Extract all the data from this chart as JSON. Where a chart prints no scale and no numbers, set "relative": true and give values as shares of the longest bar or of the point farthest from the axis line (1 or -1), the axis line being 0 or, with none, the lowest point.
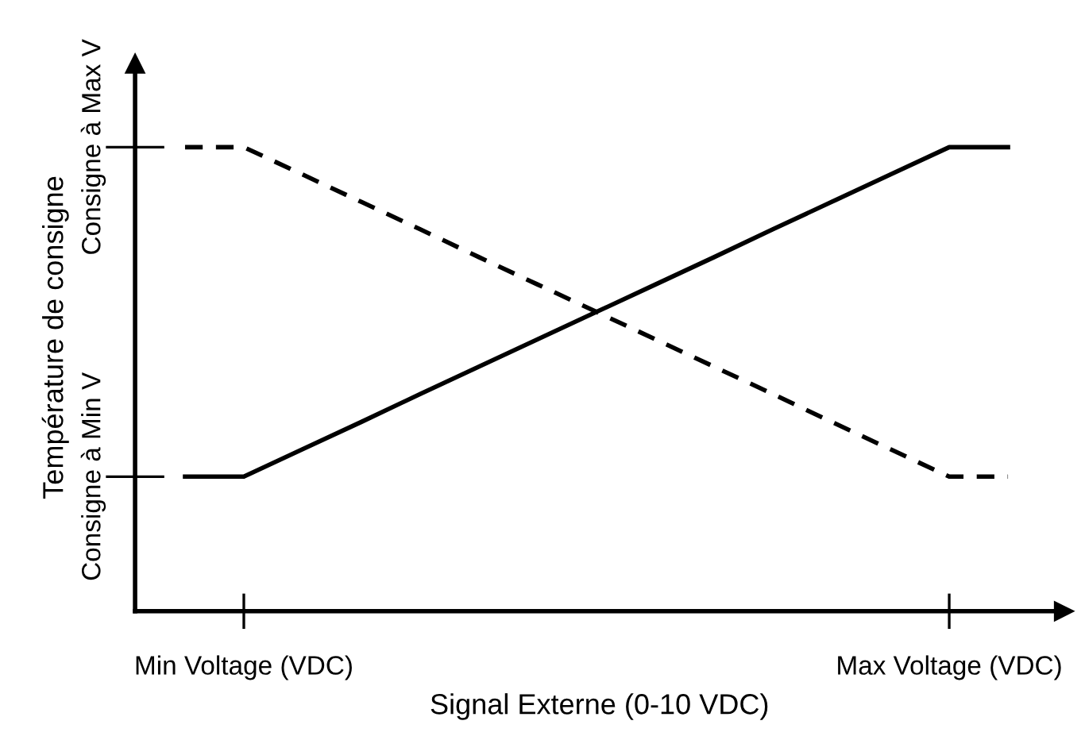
{
  "chart_data": {
    "type": "line",
    "relative": true,
    "xlabel": "Signal Externe (0-10 VDC)",
    "ylabel": "Température de consigne",
    "categories": [
      null,
      "Min Voltage (VDC)",
      null,
      null,
      null,
      null,
      null,
      null,
      null,
      null,
      null,
      null,
      null,
      "Max Voltage (VDC)",
      null
    ],
    "series": [
      {
        "color": "#000000",
        "line_style": "solid",
        "values": [
          0.29,
          0.29,
          0.349,
          0.408,
          0.468,
          0.527,
          0.586,
          0.645,
          0.704,
          0.763,
          0.823,
          0.882,
          0.941,
          1,
          1
        ]
      },
      {
        "color": "#000000",
        "line_style": "dashed",
        "values": [
          1,
          1,
          0.941,
          0.882,
          0.823,
          0.763,
          0.704,
          0.645,
          0.586,
          0.527,
          0.468,
          0.408,
          0.349,
          0.29,
          0.29
        ]
      }
    ],
    "annotations": [
      "Consigne à Min V",
      "Consigne à Max V"
    ],
    "grid": false,
    "legend": false,
    "marker": "none"
  }
}
